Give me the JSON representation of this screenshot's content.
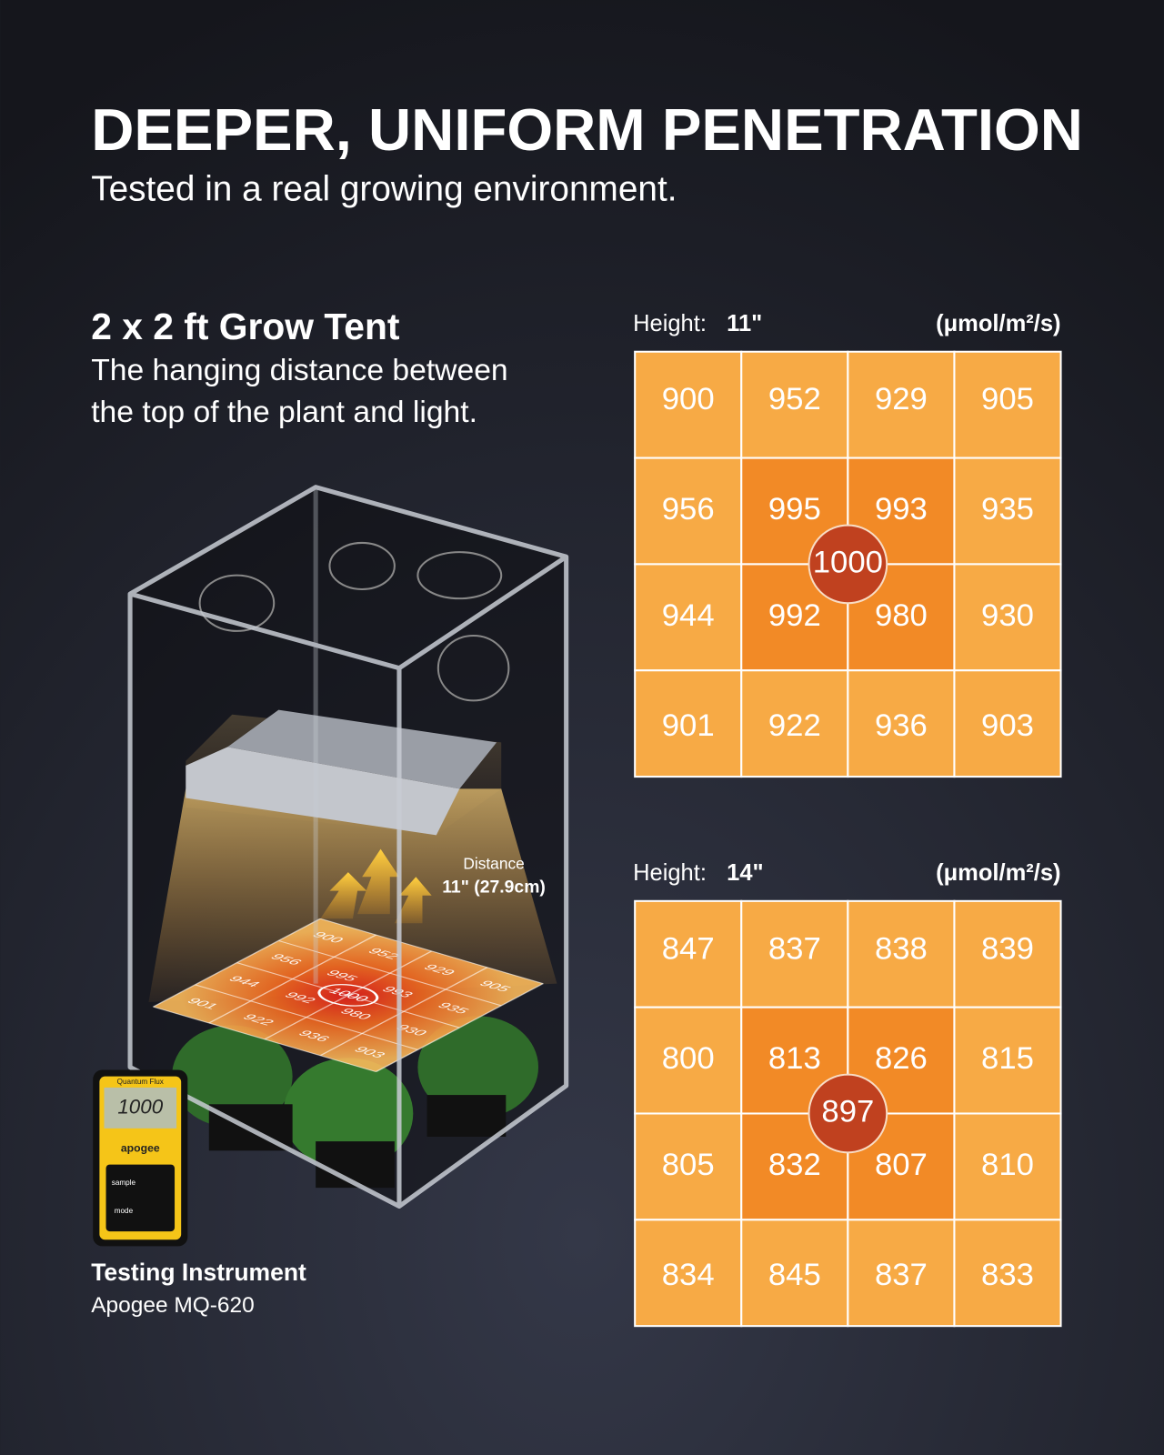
{
  "header": {
    "title": "DEEPER, UNIFORM PENETRATION",
    "subtitle": "Tested in a real growing environment."
  },
  "tent": {
    "heading": "2 x 2 ft Grow Tent",
    "description": [
      "The hanging distance between",
      "the top of the plant and light."
    ],
    "distance_label": "Distance",
    "distance_value": "11\" (27.9cm)"
  },
  "instrument": {
    "heading": "Testing Instrument",
    "model": "Apogee MQ-620",
    "caption": "Quantum Flux",
    "display": "1000",
    "brand": "apogee",
    "buttons": [
      "sample",
      "mode"
    ]
  },
  "grids": [
    {
      "height_label": "Height:",
      "height": "11\"",
      "unit": "(μmol/m²/s)",
      "rows": [
        [
          900,
          952,
          929,
          905
        ],
        [
          956,
          995,
          993,
          935
        ],
        [
          944,
          992,
          980,
          930
        ],
        [
          901,
          922,
          936,
          903
        ]
      ],
      "center": 1000
    },
    {
      "height_label": "Height:",
      "height": "14\"",
      "unit": "(μmol/m²/s)",
      "rows": [
        [
          847,
          837,
          838,
          839
        ],
        [
          800,
          813,
          826,
          815
        ],
        [
          805,
          832,
          807,
          810
        ],
        [
          834,
          845,
          837,
          833
        ]
      ],
      "center": 897
    }
  ]
}
